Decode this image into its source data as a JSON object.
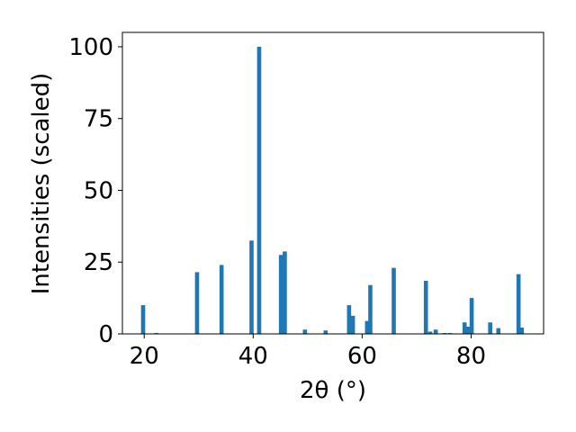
{
  "chart_data": {
    "type": "bar",
    "x": [
      19.8,
      22.2,
      29.7,
      34.2,
      39.7,
      41.1,
      45.1,
      45.8,
      49.5,
      53.3,
      57.6,
      58.3,
      60.9,
      61.5,
      65.8,
      71.7,
      72.5,
      73.5,
      75.1,
      76.1,
      78.8,
      79.4,
      80.1,
      83.5,
      85.0,
      88.7,
      89.3
    ],
    "values": [
      10,
      0.3,
      21.5,
      24,
      32.5,
      100,
      27.5,
      28.7,
      1.5,
      1.2,
      10,
      6.3,
      4.5,
      17,
      23,
      18.5,
      0.8,
      1.5,
      0.3,
      0.3,
      4,
      2.5,
      12.5,
      4,
      2,
      20.8,
      2.2
    ],
    "color": "#1f77b4",
    "xlabel": "2θ (°)",
    "ylabel": "Intensities (scaled)",
    "xlim": [
      16,
      93.3
    ],
    "xticks": [
      20,
      40,
      60,
      80
    ],
    "ylim": [
      0,
      105
    ],
    "yticks": [
      0,
      25,
      50,
      75,
      100
    ],
    "grid": false
  }
}
